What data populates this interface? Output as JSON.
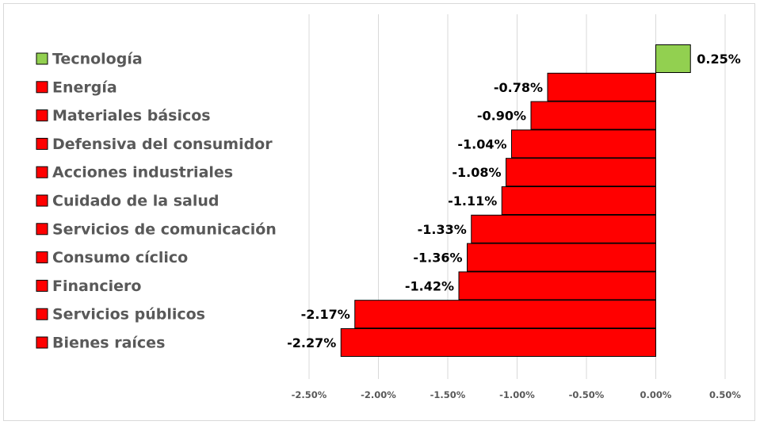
{
  "chart_data": {
    "type": "bar",
    "orientation": "horizontal",
    "categories": [
      "Tecnología",
      "Energía",
      "Materiales básicos",
      "Defensiva del consumidor",
      "Acciones industriales",
      "Cuidado de la salud",
      "Servicios de comunicación",
      "Consumo cíclico",
      "Financiero",
      "Servicios públicos",
      "Bienes raíces"
    ],
    "values": [
      0.25,
      -0.78,
      -0.9,
      -1.04,
      -1.08,
      -1.11,
      -1.33,
      -1.36,
      -1.42,
      -2.17,
      -2.27
    ],
    "value_labels": [
      "0.25%",
      "-0.78%",
      "-0.90%",
      "-1.04%",
      "-1.08%",
      "-1.11%",
      "-1.33%",
      "-1.36%",
      "-1.42%",
      "-2.17%",
      "-2.27%"
    ],
    "xlim": [
      -2.5,
      0.5
    ],
    "x_ticks": [
      -2.5,
      -2.0,
      -1.5,
      -1.0,
      -0.5,
      0.0,
      0.5
    ],
    "x_tick_labels": [
      "-2.50%",
      "-2.00%",
      "-1.50%",
      "-1.00%",
      "-0.50%",
      "0.00%",
      "0.50%"
    ],
    "grid": "vertical",
    "legend": "left",
    "colors": {
      "positive": "#92d050",
      "negative": "#ff0000",
      "grid": "#d9d9d9",
      "label": "#595959"
    },
    "title": "",
    "xlabel": "",
    "ylabel": ""
  }
}
